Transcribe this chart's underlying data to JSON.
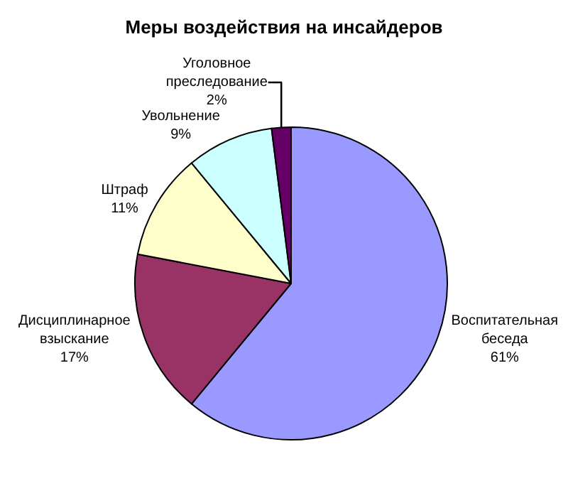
{
  "chart_data": {
    "type": "pie",
    "title": "Меры воздействия на инсайдеров",
    "categories": [
      "Воспитательная беседа",
      "Дисциплинарное взыскание",
      "Штраф",
      "Увольнение",
      "Уголовное преследование"
    ],
    "values": [
      61,
      17,
      11,
      9,
      2
    ],
    "value_labels": [
      "61%",
      "17%",
      "11%",
      "9%",
      "2%"
    ],
    "colors": [
      "#9999ff",
      "#993366",
      "#ffffcc",
      "#ccffff",
      "#660066"
    ]
  }
}
